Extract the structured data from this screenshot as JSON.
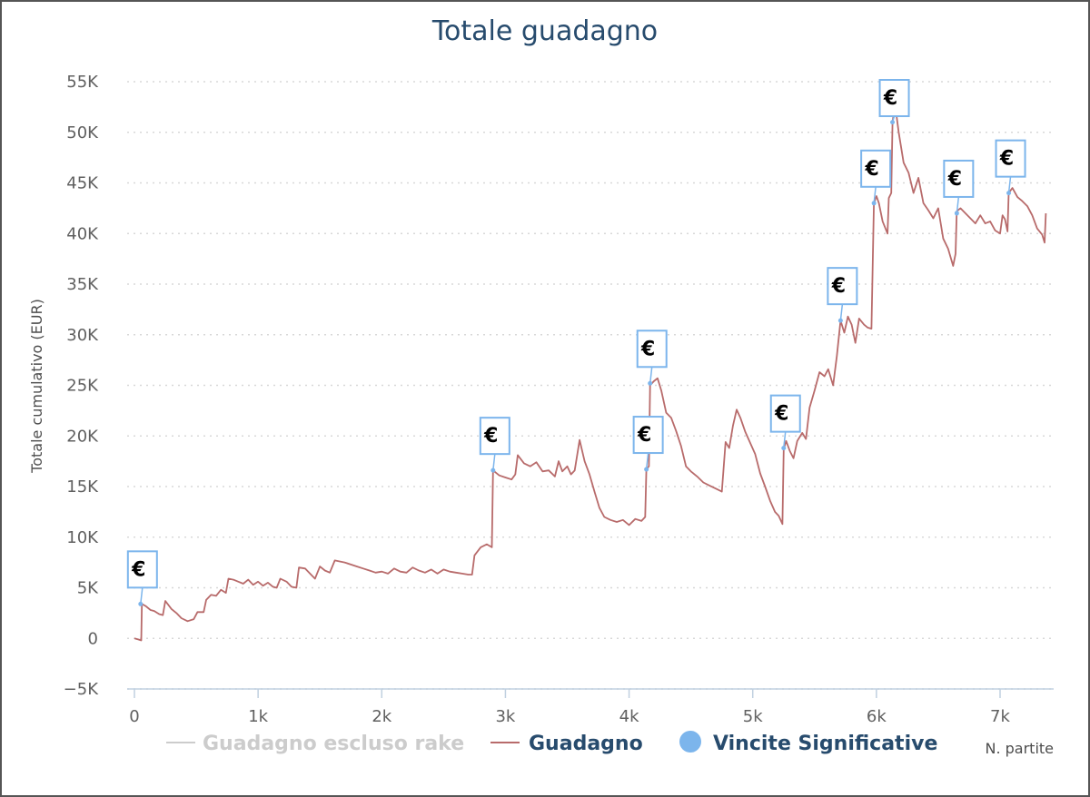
{
  "chart_data": {
    "type": "line",
    "title": "Totale guadagno",
    "ylabel": "Totale cumulativo (EUR)",
    "xlabel": "N. partite",
    "xlim": [
      0,
      7400
    ],
    "ylim": [
      -5000,
      55000
    ],
    "x_ticks": [
      {
        "value": 0,
        "label": "0"
      },
      {
        "value": 1000,
        "label": "1k"
      },
      {
        "value": 2000,
        "label": "2k"
      },
      {
        "value": 3000,
        "label": "3k"
      },
      {
        "value": 4000,
        "label": "4k"
      },
      {
        "value": 5000,
        "label": "5k"
      },
      {
        "value": 6000,
        "label": "6k"
      },
      {
        "value": 7000,
        "label": "7k"
      }
    ],
    "y_ticks": [
      {
        "value": -5000,
        "label": "−5K"
      },
      {
        "value": 0,
        "label": "0"
      },
      {
        "value": 5000,
        "label": "5K"
      },
      {
        "value": 10000,
        "label": "10K"
      },
      {
        "value": 15000,
        "label": "15K"
      },
      {
        "value": 20000,
        "label": "20K"
      },
      {
        "value": 25000,
        "label": "25K"
      },
      {
        "value": 30000,
        "label": "30K"
      },
      {
        "value": 35000,
        "label": "35K"
      },
      {
        "value": 40000,
        "label": "40K"
      },
      {
        "value": 45000,
        "label": "45K"
      },
      {
        "value": 50000,
        "label": "50K"
      },
      {
        "value": 55000,
        "label": "55K"
      }
    ],
    "grid": "horizontal-dotted",
    "legend_position": "bottom",
    "legend": [
      {
        "name": "Guadagno escluso rake",
        "marker": "line",
        "color": "#cccccc",
        "visible": false
      },
      {
        "name": "Guadagno",
        "marker": "line",
        "color": "#b86b6b",
        "visible": true
      },
      {
        "name": "Vincite Significative",
        "marker": "circle",
        "color": "#7cb5ec",
        "visible": true
      }
    ],
    "series": [
      {
        "name": "Guadagno",
        "color": "#b86b6b",
        "points": [
          [
            0,
            0
          ],
          [
            30,
            -100
          ],
          [
            55,
            -200
          ],
          [
            60,
            3400
          ],
          [
            90,
            3200
          ],
          [
            130,
            2800
          ],
          [
            160,
            2700
          ],
          [
            200,
            2400
          ],
          [
            230,
            2300
          ],
          [
            250,
            3700
          ],
          [
            300,
            2900
          ],
          [
            340,
            2500
          ],
          [
            380,
            2000
          ],
          [
            430,
            1700
          ],
          [
            480,
            1900
          ],
          [
            510,
            2600
          ],
          [
            560,
            2600
          ],
          [
            580,
            3800
          ],
          [
            620,
            4300
          ],
          [
            660,
            4200
          ],
          [
            700,
            4800
          ],
          [
            740,
            4500
          ],
          [
            760,
            5900
          ],
          [
            800,
            5800
          ],
          [
            840,
            5600
          ],
          [
            880,
            5400
          ],
          [
            920,
            5800
          ],
          [
            960,
            5300
          ],
          [
            1000,
            5600
          ],
          [
            1040,
            5200
          ],
          [
            1080,
            5500
          ],
          [
            1120,
            5100
          ],
          [
            1150,
            5000
          ],
          [
            1180,
            5900
          ],
          [
            1230,
            5600
          ],
          [
            1270,
            5100
          ],
          [
            1310,
            5000
          ],
          [
            1330,
            7000
          ],
          [
            1380,
            6900
          ],
          [
            1420,
            6400
          ],
          [
            1460,
            5900
          ],
          [
            1500,
            7100
          ],
          [
            1540,
            6700
          ],
          [
            1580,
            6500
          ],
          [
            1620,
            7700
          ],
          [
            1660,
            7600
          ],
          [
            1700,
            7500
          ],
          [
            1750,
            7300
          ],
          [
            1800,
            7100
          ],
          [
            1850,
            6900
          ],
          [
            1900,
            6700
          ],
          [
            1950,
            6500
          ],
          [
            2000,
            6600
          ],
          [
            2050,
            6400
          ],
          [
            2100,
            6900
          ],
          [
            2150,
            6600
          ],
          [
            2200,
            6500
          ],
          [
            2250,
            7000
          ],
          [
            2300,
            6700
          ],
          [
            2350,
            6500
          ],
          [
            2400,
            6800
          ],
          [
            2450,
            6400
          ],
          [
            2500,
            6800
          ],
          [
            2550,
            6600
          ],
          [
            2600,
            6500
          ],
          [
            2650,
            6400
          ],
          [
            2700,
            6300
          ],
          [
            2730,
            6300
          ],
          [
            2750,
            8200
          ],
          [
            2800,
            9000
          ],
          [
            2850,
            9300
          ],
          [
            2890,
            9000
          ],
          [
            2900,
            16600
          ],
          [
            2950,
            16100
          ],
          [
            3000,
            15900
          ],
          [
            3050,
            15700
          ],
          [
            3080,
            16200
          ],
          [
            3100,
            18100
          ],
          [
            3150,
            17300
          ],
          [
            3200,
            17000
          ],
          [
            3250,
            17400
          ],
          [
            3300,
            16500
          ],
          [
            3350,
            16600
          ],
          [
            3400,
            16000
          ],
          [
            3430,
            17500
          ],
          [
            3460,
            16500
          ],
          [
            3500,
            17000
          ],
          [
            3530,
            16200
          ],
          [
            3560,
            16600
          ],
          [
            3600,
            19600
          ],
          [
            3640,
            17500
          ],
          [
            3680,
            16200
          ],
          [
            3720,
            14500
          ],
          [
            3760,
            12900
          ],
          [
            3800,
            12000
          ],
          [
            3850,
            11700
          ],
          [
            3900,
            11500
          ],
          [
            3950,
            11700
          ],
          [
            4000,
            11200
          ],
          [
            4050,
            11800
          ],
          [
            4100,
            11600
          ],
          [
            4130,
            12000
          ],
          [
            4140,
            16700
          ],
          [
            4160,
            17000
          ],
          [
            4170,
            25000
          ],
          [
            4200,
            25400
          ],
          [
            4230,
            25700
          ],
          [
            4260,
            24500
          ],
          [
            4300,
            22300
          ],
          [
            4340,
            21800
          ],
          [
            4380,
            20500
          ],
          [
            4420,
            19000
          ],
          [
            4460,
            17000
          ],
          [
            4500,
            16500
          ],
          [
            4550,
            16000
          ],
          [
            4600,
            15400
          ],
          [
            4650,
            15100
          ],
          [
            4700,
            14800
          ],
          [
            4750,
            14500
          ],
          [
            4780,
            19400
          ],
          [
            4810,
            18800
          ],
          [
            4840,
            21000
          ],
          [
            4870,
            22600
          ],
          [
            4900,
            21800
          ],
          [
            4940,
            20400
          ],
          [
            4980,
            19300
          ],
          [
            5020,
            18200
          ],
          [
            5060,
            16300
          ],
          [
            5100,
            15000
          ],
          [
            5140,
            13600
          ],
          [
            5180,
            12500
          ],
          [
            5210,
            12100
          ],
          [
            5240,
            11300
          ],
          [
            5250,
            18700
          ],
          [
            5270,
            19500
          ],
          [
            5300,
            18500
          ],
          [
            5330,
            17800
          ],
          [
            5360,
            19500
          ],
          [
            5400,
            20300
          ],
          [
            5430,
            19700
          ],
          [
            5460,
            22800
          ],
          [
            5500,
            24500
          ],
          [
            5540,
            26300
          ],
          [
            5580,
            25900
          ],
          [
            5610,
            26600
          ],
          [
            5650,
            25000
          ],
          [
            5680,
            27900
          ],
          [
            5710,
            31400
          ],
          [
            5740,
            30200
          ],
          [
            5770,
            31800
          ],
          [
            5800,
            31000
          ],
          [
            5830,
            29200
          ],
          [
            5860,
            31600
          ],
          [
            5900,
            31000
          ],
          [
            5930,
            30700
          ],
          [
            5960,
            30600
          ],
          [
            5980,
            43000
          ],
          [
            6000,
            43700
          ],
          [
            6020,
            43000
          ],
          [
            6050,
            41200
          ],
          [
            6090,
            40000
          ],
          [
            6100,
            43500
          ],
          [
            6120,
            44000
          ],
          [
            6130,
            51000
          ],
          [
            6150,
            52800
          ],
          [
            6180,
            50000
          ],
          [
            6220,
            47000
          ],
          [
            6260,
            46000
          ],
          [
            6300,
            44000
          ],
          [
            6340,
            45500
          ],
          [
            6380,
            43000
          ],
          [
            6420,
            42300
          ],
          [
            6460,
            41500
          ],
          [
            6500,
            42500
          ],
          [
            6540,
            39500
          ],
          [
            6580,
            38500
          ],
          [
            6620,
            36800
          ],
          [
            6640,
            38000
          ],
          [
            6650,
            42200
          ],
          [
            6680,
            42500
          ],
          [
            6720,
            42000
          ],
          [
            6760,
            41500
          ],
          [
            6800,
            41000
          ],
          [
            6840,
            41800
          ],
          [
            6880,
            41000
          ],
          [
            6920,
            41200
          ],
          [
            6960,
            40300
          ],
          [
            7000,
            40000
          ],
          [
            7020,
            41800
          ],
          [
            7040,
            41400
          ],
          [
            7060,
            40200
          ],
          [
            7070,
            44000
          ],
          [
            7100,
            44500
          ],
          [
            7140,
            43600
          ],
          [
            7180,
            43200
          ],
          [
            7220,
            42700
          ],
          [
            7260,
            41800
          ],
          [
            7300,
            40500
          ],
          [
            7340,
            39900
          ],
          [
            7360,
            39100
          ],
          [
            7370,
            42000
          ]
        ]
      }
    ],
    "flags": [
      {
        "x": 50,
        "y": 3400,
        "label": "€"
      },
      {
        "x": 2900,
        "y": 16600,
        "label": "€"
      },
      {
        "x": 4140,
        "y": 16700,
        "label": "€"
      },
      {
        "x": 4170,
        "y": 25200,
        "label": "€"
      },
      {
        "x": 5250,
        "y": 18800,
        "label": "€"
      },
      {
        "x": 5710,
        "y": 31400,
        "label": "€"
      },
      {
        "x": 5980,
        "y": 43000,
        "label": "€"
      },
      {
        "x": 6130,
        "y": 51000,
        "label": "€"
      },
      {
        "x": 6650,
        "y": 42000,
        "label": "€"
      },
      {
        "x": 7070,
        "y": 44000,
        "label": "€"
      }
    ]
  }
}
